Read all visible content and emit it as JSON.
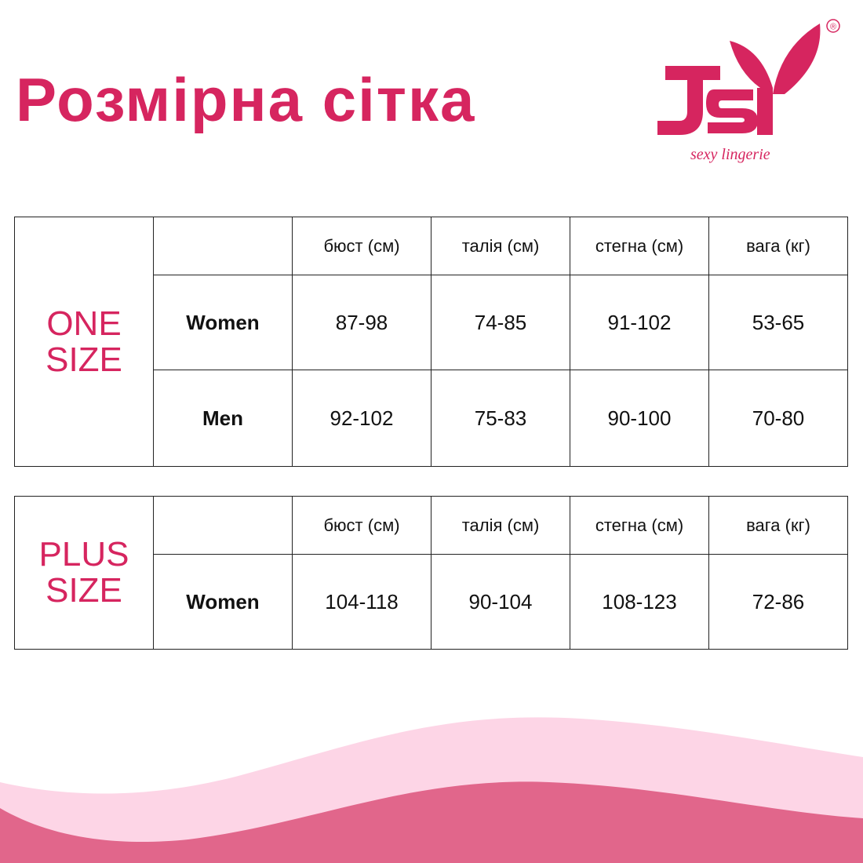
{
  "title": "Розмірна сітка",
  "logo": {
    "brand": "JSY",
    "tagline": "sexy lingerie",
    "registered": "®",
    "color": "#d6255f"
  },
  "columns": [
    "бюст (см)",
    "талія (см)",
    "стегна (см)",
    "вага (кг)"
  ],
  "one_size": {
    "label_line1": "ONE",
    "label_line2": "SIZE",
    "rows": [
      {
        "name": "Women",
        "values": [
          "87-98",
          "74-85",
          "91-102",
          "53-65"
        ]
      },
      {
        "name": "Men",
        "values": [
          "92-102",
          "75-83",
          "90-100",
          "70-80"
        ]
      }
    ]
  },
  "plus_size": {
    "label_line1": "PLUS",
    "label_line2": "SIZE",
    "rows": [
      {
        "name": "Women",
        "values": [
          "104-118",
          "90-104",
          "108-123",
          "72-86"
        ]
      }
    ]
  },
  "colors": {
    "accent": "#d6255f",
    "wave_light": "#fdd5e6",
    "wave_dark": "#e1668b"
  }
}
